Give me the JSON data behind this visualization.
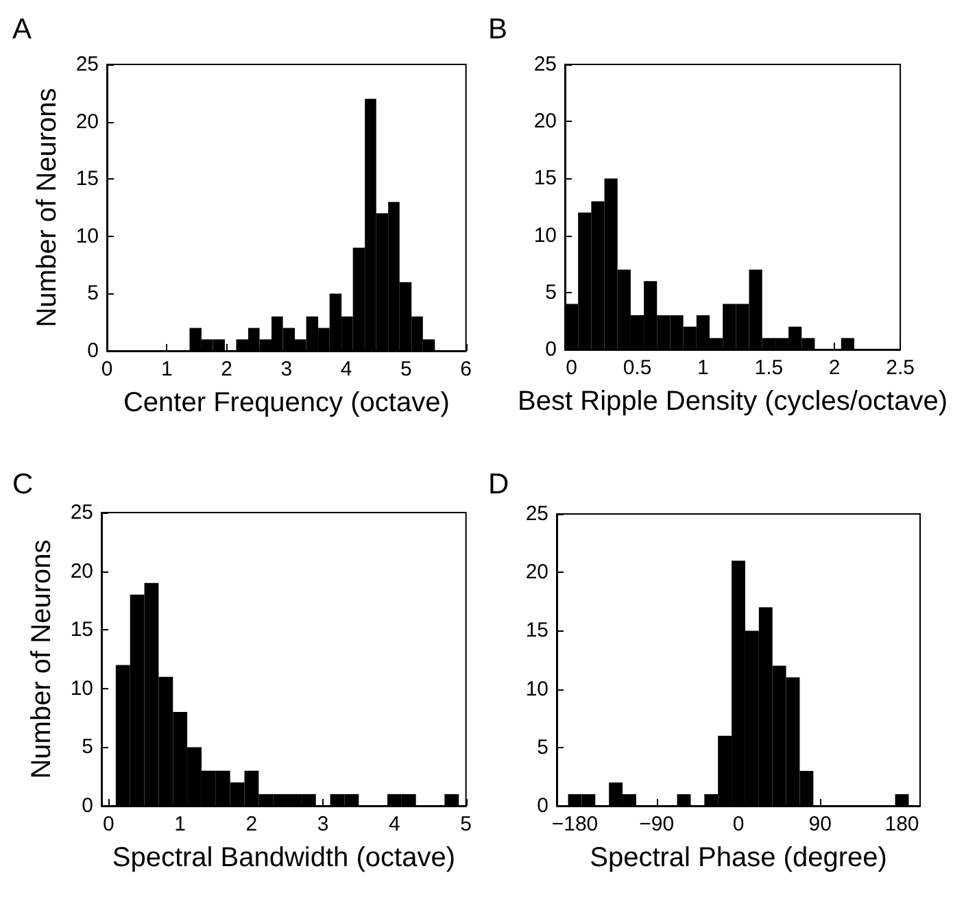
{
  "chart_data": [
    {
      "type": "histogram",
      "title": "A",
      "xlabel": "Center Frequency (octave)",
      "ylabel": "Number of Neurons",
      "color": "#000000",
      "bins": [
        1.38,
        1.58,
        1.77,
        1.97,
        2.16,
        2.36,
        2.55,
        2.75,
        2.94,
        3.14,
        3.33,
        3.53,
        3.72,
        3.92,
        4.11,
        4.31,
        4.5,
        4.7,
        4.89,
        5.09,
        5.28,
        5.48
      ],
      "values": [
        2,
        1,
        1,
        0,
        1,
        2,
        1,
        3,
        2,
        1,
        3,
        2,
        5,
        3,
        9,
        22,
        12,
        13,
        6,
        3,
        1
      ],
      "xlim": [
        0,
        6
      ],
      "xticks": [
        0,
        1,
        2,
        3,
        4,
        5,
        6
      ],
      "ylim": [
        0,
        25
      ],
      "yticks": [
        0,
        5,
        10,
        15,
        20,
        25
      ]
    },
    {
      "type": "histogram",
      "title": "B",
      "xlabel": "Best Ripple Density (cycles/octave)",
      "color": "#000000",
      "bins": [
        -0.05,
        0.05,
        0.15,
        0.25,
        0.35,
        0.45,
        0.55,
        0.65,
        0.75,
        0.85,
        0.95,
        1.05,
        1.15,
        1.25,
        1.35,
        1.45,
        1.55,
        1.65,
        1.75,
        1.85,
        1.95,
        2.05,
        2.15
      ],
      "values": [
        4,
        12,
        13,
        15,
        7,
        3,
        6,
        3,
        3,
        2,
        3,
        1,
        4,
        4,
        7,
        1,
        1,
        2,
        1,
        0,
        0,
        1
      ],
      "xlim": [
        -0.05,
        2.5
      ],
      "xticks": [
        0,
        0.5,
        1,
        1.5,
        2,
        2.5
      ],
      "ylim": [
        0,
        25
      ],
      "yticks": [
        0,
        5,
        10,
        15,
        20,
        25
      ]
    },
    {
      "type": "histogram",
      "title": "C",
      "xlabel": "Spectral Bandwidth (octave)",
      "ylabel": "Number of Neurons",
      "color": "#000000",
      "bins": [
        0.1,
        0.3,
        0.5,
        0.7,
        0.9,
        1.1,
        1.3,
        1.5,
        1.7,
        1.9,
        2.1,
        2.3,
        2.5,
        2.7,
        2.9,
        3.1,
        3.3,
        3.5,
        3.7,
        3.9,
        4.1,
        4.3,
        4.5,
        4.7,
        4.9
      ],
      "values": [
        12,
        18,
        19,
        11,
        8,
        5,
        3,
        3,
        2,
        3,
        1,
        1,
        1,
        1,
        0,
        1,
        1,
        0,
        0,
        1,
        1,
        0,
        0,
        1
      ],
      "xlim": [
        -0.1,
        5
      ],
      "xticks": [
        0,
        1,
        2,
        3,
        4,
        5
      ],
      "ylim": [
        0,
        25
      ],
      "yticks": [
        0,
        5,
        10,
        15,
        20,
        25
      ]
    },
    {
      "type": "histogram",
      "title": "D",
      "xlabel": "Spectral Phase (degree)",
      "color": "#000000",
      "bins": [
        -187.5,
        -172.5,
        -157.5,
        -142.5,
        -127.5,
        -112.5,
        -97.5,
        -82.5,
        -67.5,
        -52.5,
        -37.5,
        -22.5,
        -7.5,
        7.5,
        22.5,
        37.5,
        52.5,
        67.5,
        82.5,
        97.5,
        112.5,
        127.5,
        142.5,
        157.5,
        172.5,
        187.5
      ],
      "values": [
        1,
        1,
        0,
        2,
        1,
        0,
        0,
        0,
        1,
        0,
        1,
        6,
        21,
        15,
        17,
        12,
        11,
        3,
        0,
        0,
        0,
        0,
        0,
        0,
        1
      ],
      "xlim": [
        -200,
        200
      ],
      "xticks": [
        {
          "value": -180,
          "label": "−180"
        },
        {
          "value": -90,
          "label": "−90"
        },
        0,
        90,
        180
      ],
      "ylim": [
        0,
        25
      ],
      "yticks": [
        0,
        5,
        10,
        15,
        20,
        25
      ]
    }
  ]
}
